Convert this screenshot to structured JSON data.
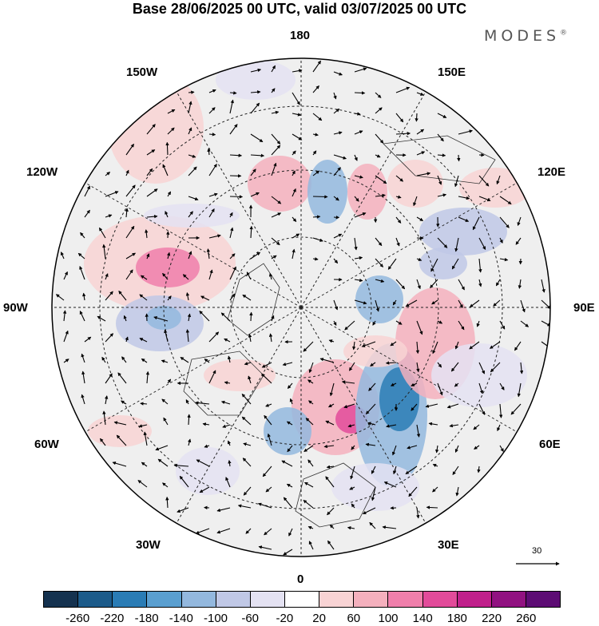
{
  "header": {
    "title": "Base 28/06/2025 00 UTC, valid 03/07/2025 00 UTC",
    "brand": "MODES",
    "brand_mark": "®"
  },
  "map": {
    "projection": "north-polar-stereographic",
    "longitude_labels": {
      "top": "180",
      "bottom": "0",
      "left": "90W",
      "right": "90E",
      "upper_left_1": "150W",
      "upper_left_2": "120W",
      "upper_right_1": "150E",
      "upper_right_2": "120E",
      "lower_left_1": "60W",
      "lower_left_2": "30W",
      "lower_right_1": "60E",
      "lower_right_2": "30E"
    },
    "reference_vector": {
      "label": "30",
      "value": 30
    },
    "background_color": "#efefef",
    "coast_color": "#333333",
    "grid_color": "#222222"
  },
  "colorbar": {
    "levels": [
      "-260",
      "-220",
      "-180",
      "-140",
      "-100",
      "-60",
      "-20",
      "20",
      "60",
      "100",
      "140",
      "180",
      "220",
      "260"
    ],
    "colors": [
      "#15324f",
      "#1c5b8a",
      "#2a7cb5",
      "#5a9fd0",
      "#93b8de",
      "#c0c8e6",
      "#e4e2f2",
      "#ffffff",
      "#f8d3d4",
      "#f4b0bd",
      "#f07fab",
      "#e24b9a",
      "#c0208b",
      "#911281",
      "#5d0c74"
    ]
  }
}
